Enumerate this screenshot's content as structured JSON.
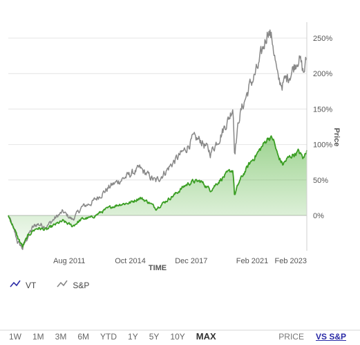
{
  "chart_data": {
    "type": "line",
    "xlabel": "TIME",
    "ylabel": "Price",
    "x_tick_labels": [
      "Aug 2011",
      "Oct 2014",
      "Dec 2017",
      "Feb 2021",
      "Feb 2023"
    ],
    "y_tick_labels": [
      "0%",
      "50%",
      "100%",
      "150%",
      "200%",
      "250%"
    ],
    "ylim": [
      -50,
      270
    ],
    "xlim": [
      "2008-06",
      "2023-12"
    ],
    "grid": "horizontal",
    "series": [
      {
        "name": "VT",
        "color": "#3a9e23",
        "fill": "green-gradient",
        "dates": [
          "2008-06",
          "2008-09",
          "2008-12",
          "2009-03",
          "2009-06",
          "2009-09",
          "2009-12",
          "2010-06",
          "2010-12",
          "2011-04",
          "2011-10",
          "2012-04",
          "2012-10",
          "2013-04",
          "2013-10",
          "2014-04",
          "2014-10",
          "2015-04",
          "2015-10",
          "2016-02",
          "2016-08",
          "2017-02",
          "2017-08",
          "2018-01",
          "2018-06",
          "2018-12",
          "2019-06",
          "2019-12",
          "2020-02",
          "2020-03",
          "2020-06",
          "2020-12",
          "2021-06",
          "2021-12",
          "2022-03",
          "2022-06",
          "2022-09",
          "2022-12",
          "2023-03",
          "2023-07",
          "2023-10",
          "2023-12"
        ],
        "values": [
          0,
          -15,
          -32,
          -44,
          -30,
          -22,
          -18,
          -20,
          -12,
          -8,
          -15,
          -5,
          -3,
          5,
          12,
          16,
          18,
          25,
          18,
          10,
          20,
          30,
          42,
          48,
          48,
          36,
          50,
          62,
          64,
          28,
          48,
          72,
          90,
          110,
          108,
          84,
          72,
          80,
          85,
          90,
          80,
          92
        ]
      },
      {
        "name": "S&P",
        "color": "#888888",
        "dates": [
          "2008-06",
          "2008-09",
          "2008-12",
          "2009-03",
          "2009-06",
          "2009-09",
          "2009-12",
          "2010-06",
          "2010-12",
          "2011-04",
          "2011-10",
          "2012-04",
          "2012-10",
          "2013-04",
          "2013-10",
          "2014-04",
          "2014-10",
          "2015-04",
          "2015-10",
          "2016-02",
          "2016-08",
          "2017-02",
          "2017-08",
          "2018-01",
          "2018-06",
          "2018-12",
          "2019-06",
          "2019-12",
          "2020-02",
          "2020-03",
          "2020-06",
          "2020-12",
          "2021-06",
          "2021-12",
          "2022-03",
          "2022-06",
          "2022-09",
          "2022-12",
          "2023-03",
          "2023-07",
          "2023-10",
          "2023-12"
        ],
        "values": [
          0,
          -18,
          -38,
          -46,
          -30,
          -18,
          -12,
          -15,
          -2,
          5,
          -6,
          12,
          18,
          30,
          42,
          50,
          58,
          66,
          55,
          48,
          62,
          78,
          92,
          108,
          106,
          88,
          112,
          140,
          155,
          90,
          140,
          180,
          210,
          265,
          242,
          190,
          185,
          195,
          205,
          225,
          200,
          222
        ]
      }
    ]
  },
  "legend": [
    {
      "label": "VT",
      "icon": "trend-line-icon",
      "color": "#2a2aa6"
    },
    {
      "label": "S&P",
      "icon": "trend-line-icon",
      "color": "#888888"
    }
  ],
  "time_ranges": [
    {
      "label": "1W",
      "active": false
    },
    {
      "label": "1M",
      "active": false
    },
    {
      "label": "3M",
      "active": false
    },
    {
      "label": "6M",
      "active": false
    },
    {
      "label": "YTD",
      "active": false
    },
    {
      "label": "1Y",
      "active": false
    },
    {
      "label": "5Y",
      "active": false
    },
    {
      "label": "10Y",
      "active": false
    },
    {
      "label": "MAX",
      "active": true
    }
  ],
  "view_modes": [
    {
      "label": "PRICE",
      "active": false
    },
    {
      "label": "VS S&P",
      "active": true
    }
  ]
}
